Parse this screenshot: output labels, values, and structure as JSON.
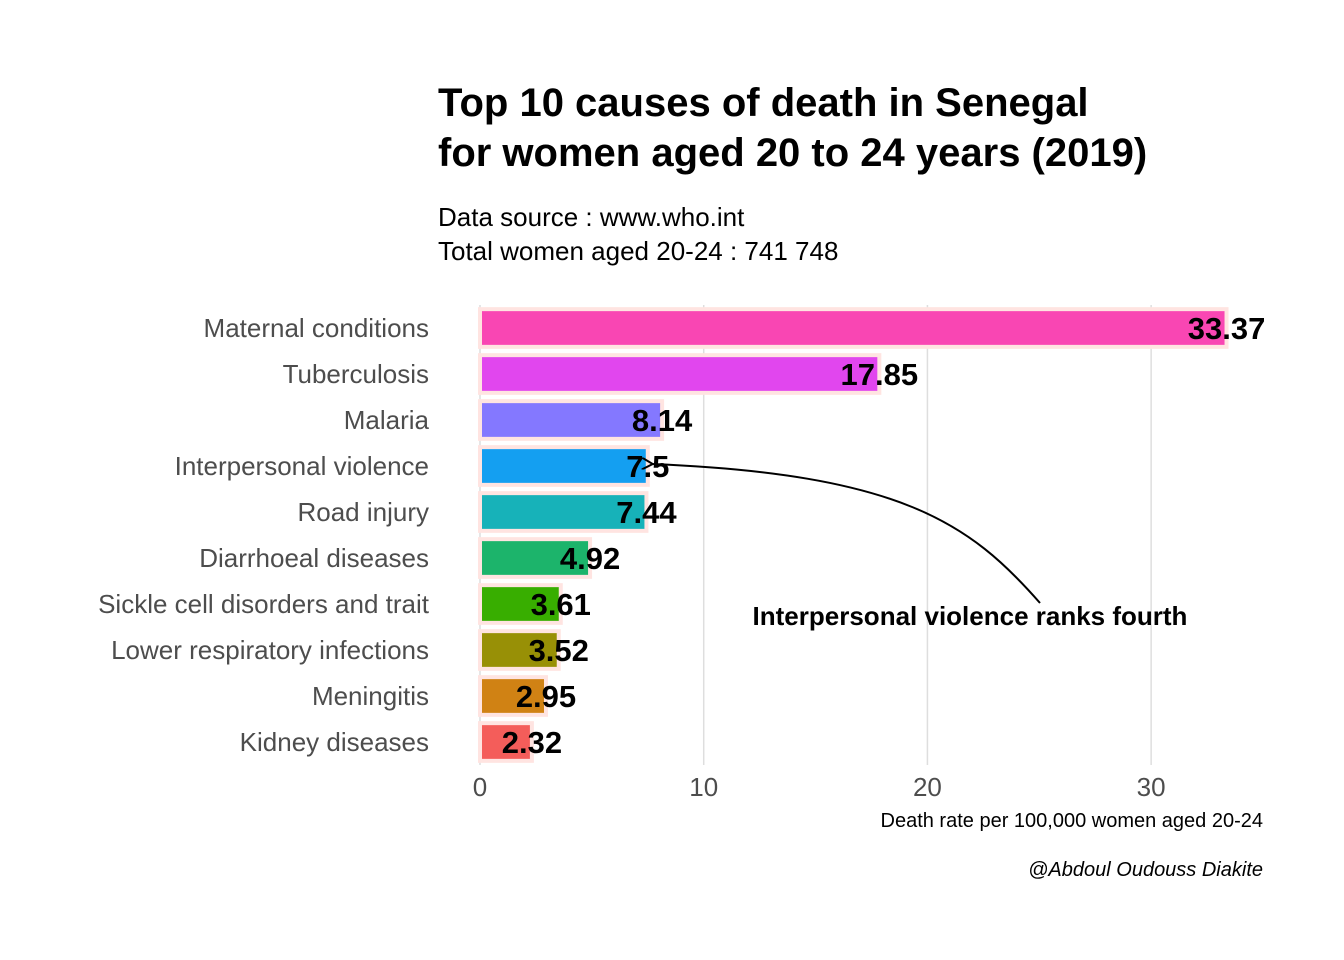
{
  "chart_data": {
    "type": "bar",
    "orientation": "horizontal",
    "title_lines": [
      "Top 10 causes of death in Senegal",
      "for women aged 20 to 24 years (2019)"
    ],
    "subtitle_lines": [
      "Data source : www.who.int",
      "Total women aged 20-24 : 741 748"
    ],
    "categories": [
      "Maternal conditions",
      "Tuberculosis",
      "Malaria",
      "Interpersonal violence",
      "Road injury",
      "Diarrhoeal diseases",
      "Sickle cell disorders and trait",
      "Lower respiratory infections",
      "Meningitis",
      "Kidney diseases"
    ],
    "values": [
      33.37,
      17.85,
      8.14,
      7.5,
      7.44,
      4.92,
      3.61,
      3.52,
      2.95,
      2.32
    ],
    "value_labels": [
      "33.37",
      "17.85",
      "8.14",
      "7.5",
      "7.44",
      "4.92",
      "3.61",
      "3.52",
      "2.95",
      "2.32"
    ],
    "colors": [
      "#f946b3",
      "#e146ee",
      "#8478ff",
      "#149ff1",
      "#17b2b9",
      "#1cb46b",
      "#38ae00",
      "#989006",
      "#d08214",
      "#f45d5a"
    ],
    "bar_outline_color": "#ffe4e1",
    "xlabel": "Death rate per 100,000 women aged 20-24",
    "ylabel": "",
    "xlim": [
      0,
      35
    ],
    "xticks": [
      0,
      10,
      20,
      30
    ],
    "grid": "vertical major",
    "legend": "none",
    "annotation": {
      "text": "Interpersonal violence ranks fourth",
      "target_category": "Interpersonal violence"
    },
    "caption": "@Abdoul Oudouss Diakite"
  }
}
